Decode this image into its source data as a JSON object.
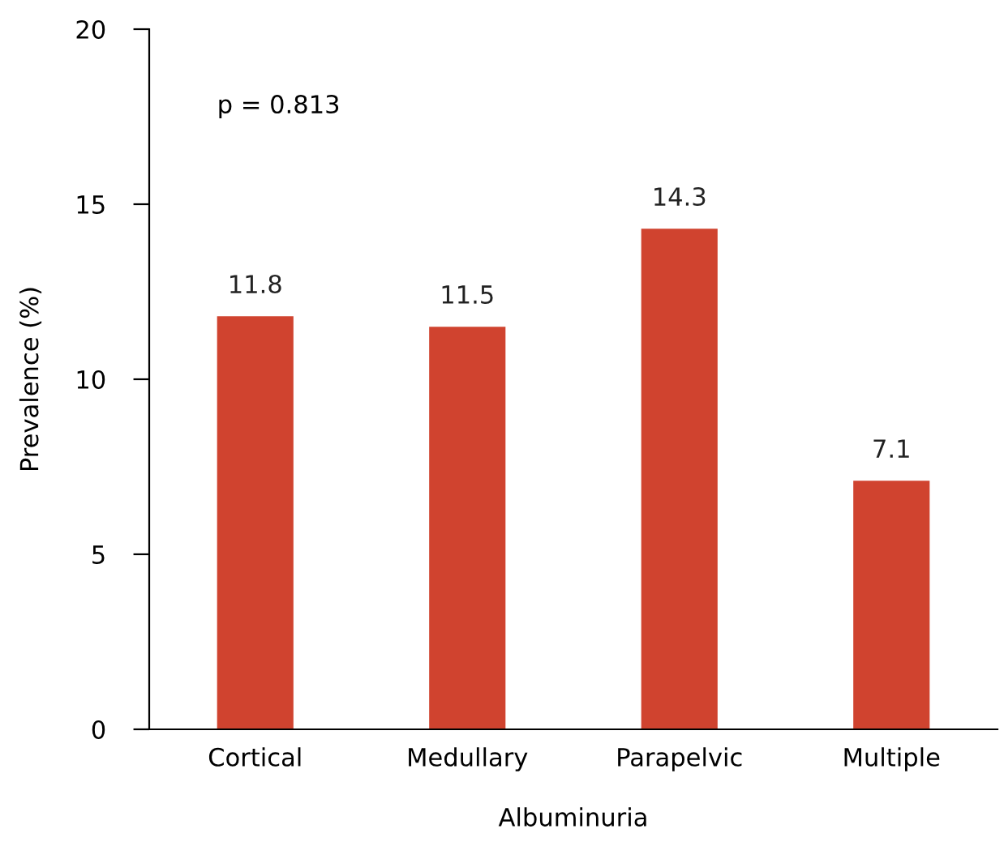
{
  "chart_data": {
    "type": "bar",
    "xlabel": "Albuminuria",
    "ylabel": "Prevalence (%)",
    "categories": [
      "Cortical",
      "Medullary",
      "Parapelvic",
      "Multiple"
    ],
    "values": [
      11.8,
      11.5,
      14.3,
      7.1
    ],
    "color": "#d0432f",
    "ylim": [
      0,
      20
    ],
    "yticks": [
      0,
      5,
      10,
      15,
      20
    ],
    "data_labels": true,
    "grid": false,
    "annotations": [
      "p = 0.813"
    ]
  }
}
